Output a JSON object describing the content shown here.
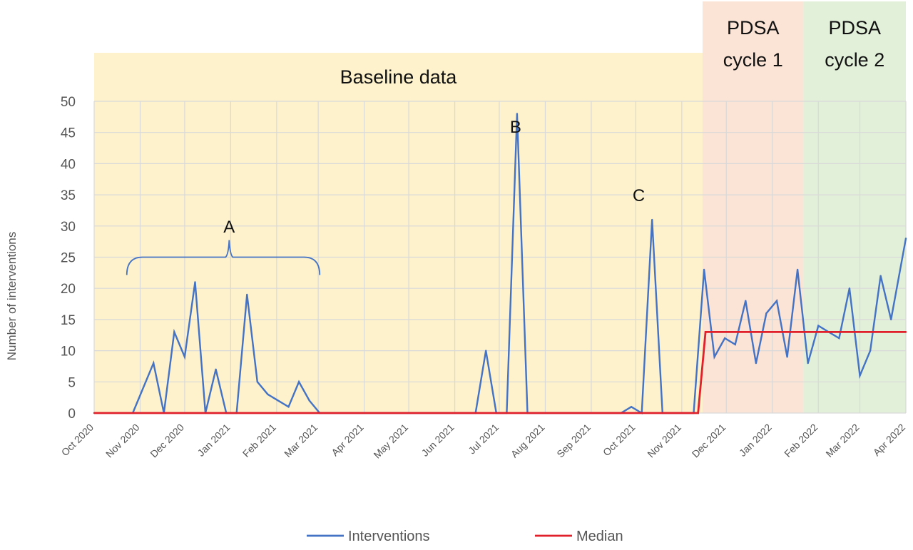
{
  "chart_data": {
    "type": "line",
    "ylabel": "Number of interventions",
    "ylim": [
      0,
      50
    ],
    "yticks": [
      0,
      5,
      10,
      15,
      20,
      25,
      30,
      35,
      40,
      45,
      50
    ],
    "xlim": [
      "2020-10-01",
      "2022-04-01"
    ],
    "xticks": [
      {
        "date": "2020-10-01",
        "label": "Oct 2020"
      },
      {
        "date": "2020-11-01",
        "label": "Nov 2020"
      },
      {
        "date": "2020-12-01",
        "label": "Dec 2020"
      },
      {
        "date": "2021-01-01",
        "label": "Jan 2021"
      },
      {
        "date": "2021-02-01",
        "label": "Feb 2021"
      },
      {
        "date": "2021-03-01",
        "label": "Mar 2021"
      },
      {
        "date": "2021-04-01",
        "label": "Apr 2021"
      },
      {
        "date": "2021-05-01",
        "label": "May 2021"
      },
      {
        "date": "2021-06-01",
        "label": "Jun 2021"
      },
      {
        "date": "2021-07-01",
        "label": "Jul 2021"
      },
      {
        "date": "2021-08-01",
        "label": "Aug 2021"
      },
      {
        "date": "2021-09-01",
        "label": "Sep 2021"
      },
      {
        "date": "2021-10-01",
        "label": "Oct 2021"
      },
      {
        "date": "2021-11-01",
        "label": "Nov 2021"
      },
      {
        "date": "2021-12-01",
        "label": "Dec 2021"
      },
      {
        "date": "2022-01-01",
        "label": "Jan 2022"
      },
      {
        "date": "2022-02-01",
        "label": "Feb 2022"
      },
      {
        "date": "2022-03-01",
        "label": "Mar 2022"
      },
      {
        "date": "2022-04-01",
        "label": "Apr 2022"
      }
    ],
    "grid": true,
    "legend_position": "bottom",
    "phases": [
      {
        "label": "Baseline data",
        "start": "2020-10-01",
        "end": "2021-11-15",
        "color": "#fdf2cc"
      },
      {
        "label": "PDSA cycle 1",
        "start": "2021-11-15",
        "end": "2022-01-22",
        "color": "#fbe3d6"
      },
      {
        "label": "PDSA cycle 2",
        "start": "2022-01-22",
        "end": "2022-04-01",
        "color": "#e2f0d9"
      }
    ],
    "annotations": [
      {
        "label": "A",
        "x": "2020-12-31",
        "y": 30,
        "range_start": "2020-10-23",
        "range_end": "2021-03-02",
        "level": 25
      },
      {
        "label": "B",
        "x": "2021-07-12",
        "y": 46
      },
      {
        "label": "C",
        "x": "2021-10-03",
        "y": 35
      }
    ],
    "series": [
      {
        "name": "Interventions",
        "color": "#4472c4",
        "points": [
          [
            "2020-10-27",
            0
          ],
          [
            "2020-11-10",
            8
          ],
          [
            "2020-11-17",
            0
          ],
          [
            "2020-11-24",
            13
          ],
          [
            "2020-12-01",
            9
          ],
          [
            "2020-12-08",
            21
          ],
          [
            "2020-12-15",
            0
          ],
          [
            "2020-12-22",
            7
          ],
          [
            "2020-12-29",
            0
          ],
          [
            "2021-01-05",
            0
          ],
          [
            "2021-01-12",
            19
          ],
          [
            "2021-01-19",
            5
          ],
          [
            "2021-01-26",
            3
          ],
          [
            "2021-02-09",
            1
          ],
          [
            "2021-02-16",
            5
          ],
          [
            "2021-02-23",
            2
          ],
          [
            "2021-03-02",
            0
          ],
          [
            "2021-06-15",
            0
          ],
          [
            "2021-06-22",
            10
          ],
          [
            "2021-06-29",
            0
          ],
          [
            "2021-07-06",
            0
          ],
          [
            "2021-07-13",
            48
          ],
          [
            "2021-07-20",
            0
          ],
          [
            "2021-09-21",
            0
          ],
          [
            "2021-09-28",
            1
          ],
          [
            "2021-10-05",
            0
          ],
          [
            "2021-10-12",
            31
          ],
          [
            "2021-10-19",
            0
          ],
          [
            "2021-11-09",
            0
          ],
          [
            "2021-11-16",
            23
          ],
          [
            "2021-11-23",
            9
          ],
          [
            "2021-11-30",
            12
          ],
          [
            "2021-12-07",
            11
          ],
          [
            "2021-12-14",
            18
          ],
          [
            "2021-12-21",
            8
          ],
          [
            "2021-12-28",
            16
          ],
          [
            "2022-01-04",
            18
          ],
          [
            "2022-01-11",
            9
          ],
          [
            "2022-01-18",
            23
          ],
          [
            "2022-01-25",
            8
          ],
          [
            "2022-02-01",
            14
          ],
          [
            "2022-02-08",
            13
          ],
          [
            "2022-02-15",
            12
          ],
          [
            "2022-02-22",
            20
          ],
          [
            "2022-03-01",
            6
          ],
          [
            "2022-03-08",
            10
          ],
          [
            "2022-03-15",
            22
          ],
          [
            "2022-03-22",
            15
          ],
          [
            "2022-04-01",
            28
          ]
        ]
      },
      {
        "name": "Median",
        "color": "#e0202a",
        "points": [
          [
            "2020-10-01",
            0
          ],
          [
            "2021-11-12",
            0
          ],
          [
            "2021-11-17",
            13
          ],
          [
            "2022-04-01",
            13
          ]
        ]
      }
    ]
  }
}
